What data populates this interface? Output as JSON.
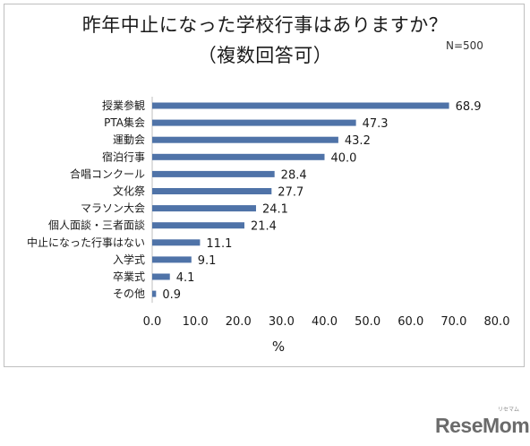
{
  "title_line1": "昨年中止になった学校行事はありますか？",
  "title_line2": "（複数回答可）",
  "note": "N=500",
  "logo": "ReseMom",
  "logo_sub": "リセマム",
  "chart_data": {
    "type": "bar",
    "orientation": "horizontal",
    "title": "昨年中止になった学校行事はありますか？（複数回答可）",
    "xlabel": "%",
    "ylabel": "",
    "xlim": [
      0,
      80
    ],
    "xticks": [
      "0.0",
      "10.0",
      "20.0",
      "30.0",
      "40.0",
      "50.0",
      "60.0",
      "70.0",
      "80.0"
    ],
    "grid": false,
    "bar_color": "#4f73a8",
    "categories": [
      "授業参観",
      "PTA集会",
      "運動会",
      "宿泊行事",
      "合唱コンクール",
      "文化祭",
      "マラソン大会",
      "個人面談・三者面談",
      "中止になった行事はない",
      "入学式",
      "卒業式",
      "その他"
    ],
    "values": [
      68.9,
      47.3,
      43.2,
      40.0,
      28.4,
      27.7,
      24.1,
      21.4,
      11.1,
      9.1,
      4.1,
      0.9
    ],
    "value_labels": [
      "68.9",
      "47.3",
      "43.2",
      "40.0",
      "28.4",
      "27.7",
      "24.1",
      "21.4",
      "11.1",
      "9.1",
      "4.1",
      "0.9"
    ]
  }
}
